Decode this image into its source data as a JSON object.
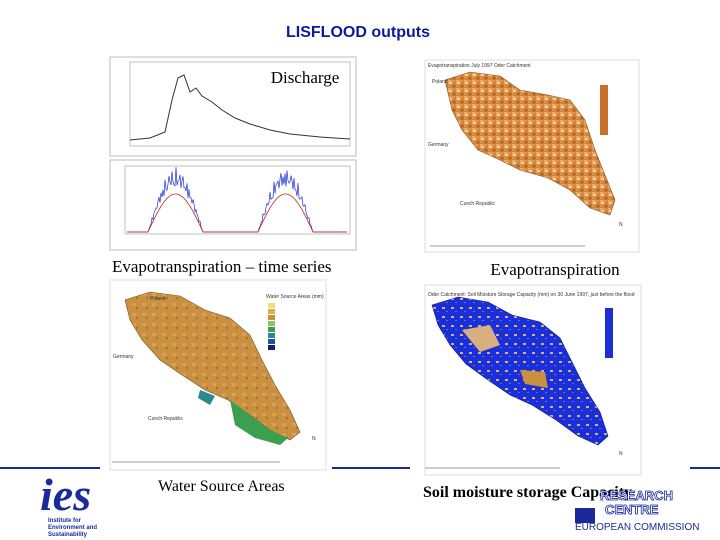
{
  "title": "LISFLOOD outputs",
  "panels": {
    "discharge": {
      "label": "Discharge"
    },
    "et_series": {
      "caption": "Evapotranspiration – time series"
    },
    "et_map": {
      "caption": "Evapotranspiration",
      "map_title": "Evapotranspiration July 1997 Oder Catchment",
      "places": [
        "Poland",
        "Germany",
        "Czech Republic"
      ],
      "north": "N"
    },
    "water_source": {
      "caption": "Water Source Areas",
      "legend_title": "Water Source Areas (mm)",
      "places": [
        "Poland",
        "Germany",
        "Czech Republic"
      ],
      "north": "N"
    },
    "soil": {
      "caption": "Soil moisture storage Capacity",
      "map_title": "Oder Catchment: Soil Moisture Storage Capacity (mm) on 30 June 1997, just before the flood",
      "north": "N"
    }
  },
  "logos": {
    "ies": "ies",
    "ies_name": [
      "Institute for",
      "Environment and",
      "Sustainability"
    ],
    "jrc": [
      "RESEARCH",
      "CENTRE"
    ],
    "ec": "EUROPEAN COMMISSION"
  }
}
